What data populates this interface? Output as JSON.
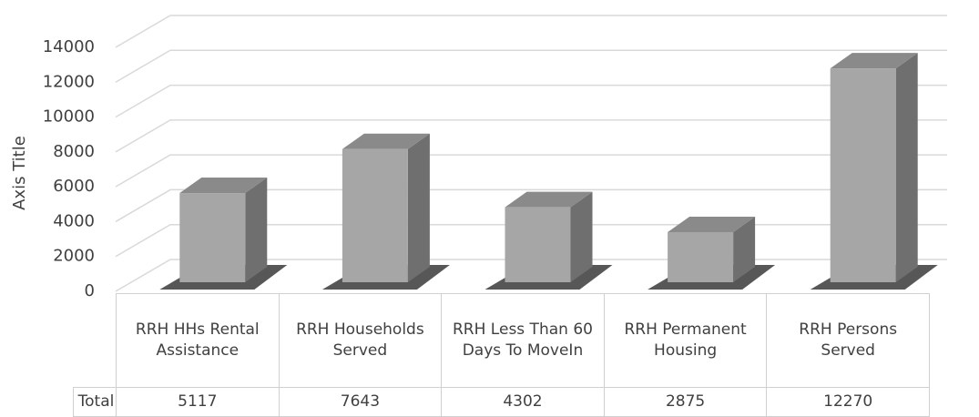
{
  "chart_data": {
    "type": "bar3d",
    "y_label": "Axis Title",
    "categories": [
      "RRH HHs Rental Assistance",
      "RRH Households Served",
      "RRH Less Than 60 Days To MoveIn",
      "RRH Permanent Housing",
      "RRH Persons Served"
    ],
    "series": [
      {
        "name": "Total",
        "color": "#a6a6a6",
        "values": [
          5117,
          7643,
          4302,
          2875,
          12270
        ]
      }
    ],
    "ylim": [
      0,
      14000
    ],
    "yticks": [
      0,
      2000,
      4000,
      6000,
      8000,
      10000,
      12000,
      14000
    ],
    "grid": true,
    "data_table": true
  }
}
